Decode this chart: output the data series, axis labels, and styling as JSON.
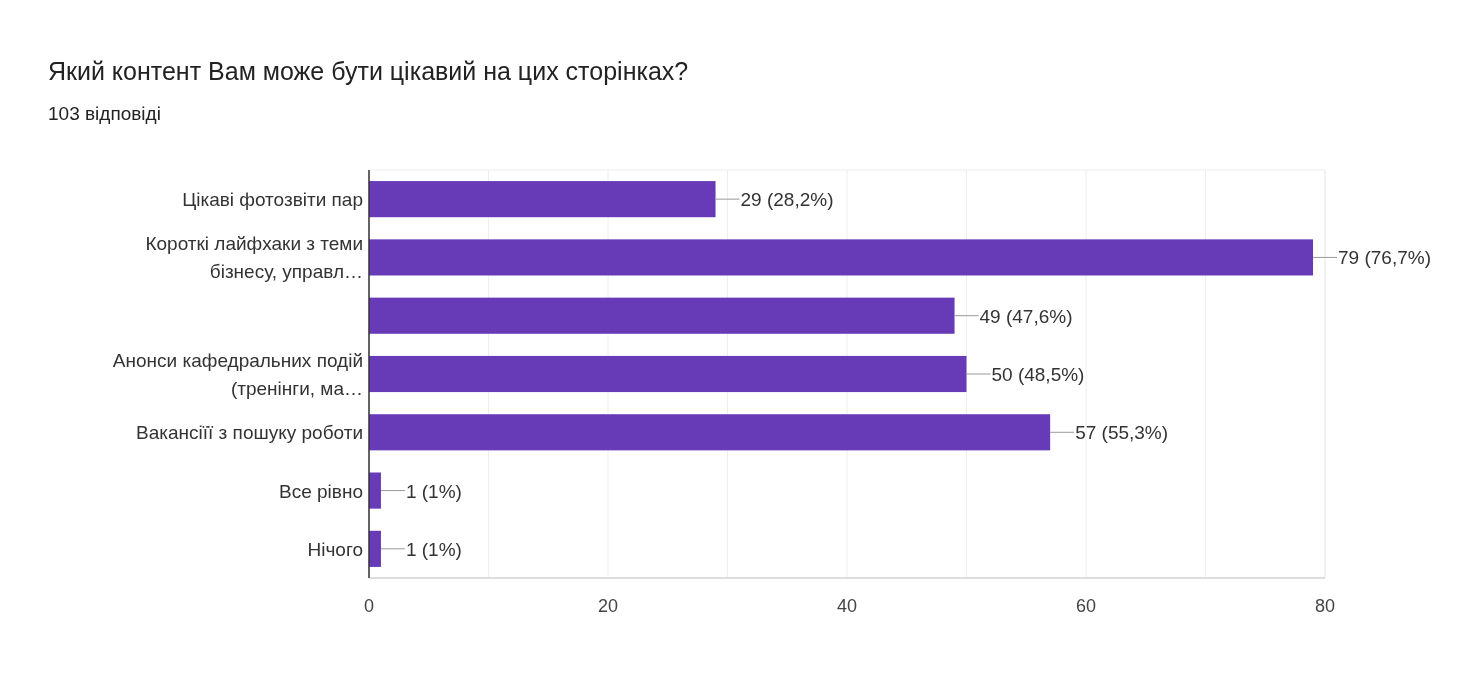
{
  "chart_data": {
    "type": "bar",
    "orientation": "horizontal",
    "title": "Який контент Вам може бути цікавий на цих сторінках?",
    "subtitle": "103 відповіді",
    "categories": [
      "Цікаві фотозвіти пар",
      "Короткі лайфхаки з теми бізнесу, управл…",
      null,
      "Анонси кафедральних подій (тренінги, ма…",
      "Вакансіїї з пошуку роботи",
      "Все рівно",
      "Нічого"
    ],
    "values": [
      29,
      79,
      49,
      50,
      57,
      1,
      1
    ],
    "value_labels": [
      "29 (28,2%)",
      "79 (76,7%)",
      "49 (47,6%)",
      "50 (48,5%)",
      "57 (55,3%)",
      "1 (1%)",
      "1 (1%)"
    ],
    "color": "#673ab7",
    "xlim": [
      0,
      80
    ],
    "xticks": [
      0,
      {
        "value": 10,
        "label": null
      },
      20,
      {
        "value": 30,
        "label": null
      },
      40,
      {
        "value": 50,
        "label": null
      },
      60,
      {
        "value": 70,
        "label": null
      },
      80
    ],
    "grid": "x"
  }
}
